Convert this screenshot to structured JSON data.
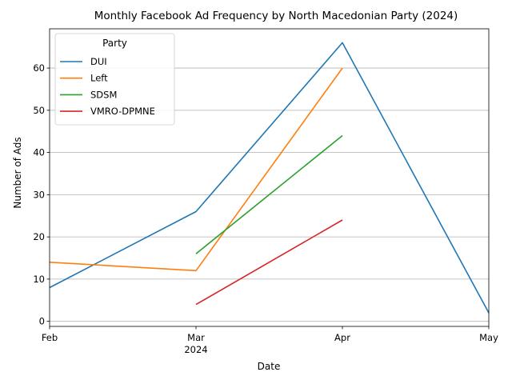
{
  "chart_data": {
    "type": "line",
    "title": "Monthly Facebook Ad Frequency by North Macedonian Party (2024)",
    "xlabel": "Date",
    "ylabel": "Number of Ads",
    "x_ticks": [
      {
        "date": "2024-02",
        "label": "Feb",
        "sublabel": ""
      },
      {
        "date": "2024-03",
        "label": "Mar",
        "sublabel": "2024"
      },
      {
        "date": "2024-04",
        "label": "Apr",
        "sublabel": ""
      },
      {
        "date": "2024-05",
        "label": "May",
        "sublabel": ""
      }
    ],
    "xlim": [
      "2024-02",
      "2024-05"
    ],
    "ylim": [
      -1.2,
      69.3
    ],
    "yticks": [
      0,
      10,
      20,
      30,
      40,
      50,
      60
    ],
    "grid": "horizontal",
    "legend": {
      "title": "Party",
      "placement": "top-left"
    },
    "series": [
      {
        "name": "DUI",
        "color": "#1f77b4",
        "points": [
          [
            "2024-02",
            8
          ],
          [
            "2024-03",
            26
          ],
          [
            "2024-04",
            66
          ],
          [
            "2024-05",
            2
          ]
        ]
      },
      {
        "name": "Left",
        "color": "#ff7f0e",
        "points": [
          [
            "2024-02",
            14
          ],
          [
            "2024-03",
            12
          ],
          [
            "2024-04",
            60
          ]
        ]
      },
      {
        "name": "SDSM",
        "color": "#2ca02c",
        "points": [
          [
            "2024-03",
            16
          ],
          [
            "2024-04",
            44
          ]
        ]
      },
      {
        "name": "VMRO-DPMNE",
        "color": "#d62728",
        "points": [
          [
            "2024-03",
            4
          ],
          [
            "2024-04",
            24
          ]
        ]
      }
    ]
  }
}
